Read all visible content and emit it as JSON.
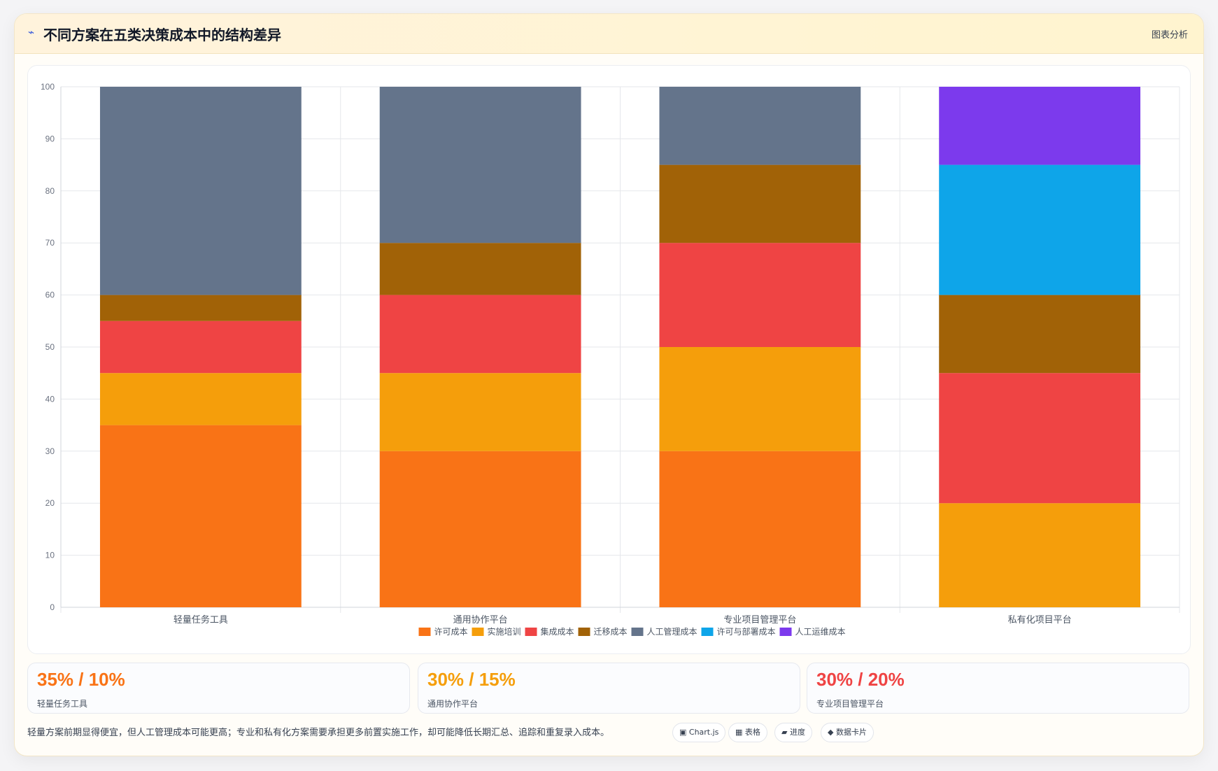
{
  "header": {
    "title": "不同方案在五类决策成本中的结构差异",
    "action_label": "图表分析",
    "icon": "bolt-icon"
  },
  "chart_data": {
    "type": "bar",
    "stacked": true,
    "categories": [
      "轻量任务工具",
      "通用协作平台",
      "专业项目管理平台",
      "私有化项目平台"
    ],
    "ylim": [
      0,
      100
    ],
    "yticks": [
      0,
      10,
      20,
      30,
      40,
      50,
      60,
      70,
      80,
      90,
      100
    ],
    "grid": true,
    "legend_position": "bottom",
    "series": [
      {
        "name": "许可成本",
        "color": "#f97316",
        "values": [
          35,
          30,
          30,
          0
        ]
      },
      {
        "name": "实施培训",
        "color": "#f59e0b",
        "values": [
          10,
          15,
          20,
          20
        ]
      },
      {
        "name": "集成成本",
        "color": "#ef4444",
        "values": [
          10,
          15,
          20,
          25
        ]
      },
      {
        "name": "迁移成本",
        "color": "#a16207",
        "values": [
          5,
          10,
          15,
          15
        ]
      },
      {
        "name": "人工管理成本",
        "color": "#64748b",
        "values": [
          40,
          30,
          15,
          0
        ]
      },
      {
        "name": "许可与部署成本",
        "color": "#0ea5e9",
        "values": [
          0,
          0,
          0,
          25
        ]
      },
      {
        "name": "人工运维成本",
        "color": "#7c3aed",
        "values": [
          0,
          0,
          0,
          15
        ]
      }
    ]
  },
  "stats": [
    {
      "value": "35% / 10%",
      "label": "轻量任务工具",
      "color": "#f97316"
    },
    {
      "value": "30% / 15%",
      "label": "通用协作平台",
      "color": "#f59e0b"
    },
    {
      "value": "30% / 20%",
      "label": "专业项目管理平台",
      "color": "#ef4444"
    }
  ],
  "note": "轻量方案前期显得便宜，但人工管理成本可能更高；专业和私有化方案需要承担更多前置实施工作，却可能降低长期汇总、追踪和重复录入成本。",
  "chips": [
    {
      "label": "▣ Chart.js",
      "icon": "chart-icon"
    },
    {
      "label": "▦ 表格",
      "icon": "table-icon"
    },
    {
      "label": "▰ 进度",
      "icon": "progress-icon"
    },
    {
      "label": "◆ 数据卡片",
      "icon": "card-icon"
    }
  ]
}
